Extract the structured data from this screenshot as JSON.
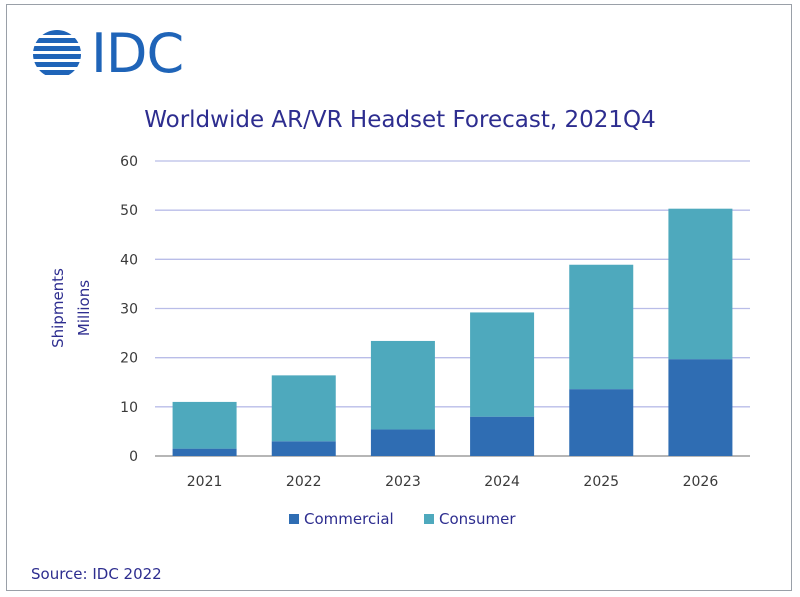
{
  "logo": {
    "text": "IDC"
  },
  "source": "Source: IDC 2022",
  "chart_data": {
    "type": "bar",
    "stacked": true,
    "title": "Worldwide AR/VR Headset Forecast, 2021Q4",
    "ylabel_lines": [
      "Shipments",
      "Millions"
    ],
    "categories": [
      "2021",
      "2022",
      "2023",
      "2024",
      "2025",
      "2026"
    ],
    "series": [
      {
        "name": "Commercial",
        "color": "#2f6db3",
        "values": [
          1.5,
          3,
          5.4,
          8,
          13.6,
          19.7
        ]
      },
      {
        "name": "Consumer",
        "color": "#4ea9bd",
        "values": [
          9.5,
          13.4,
          18,
          21.2,
          25.3,
          30.6
        ]
      }
    ],
    "ylim": [
      0,
      60
    ],
    "yticks": [
      0,
      10,
      20,
      30,
      40,
      50,
      60
    ],
    "grid": true,
    "legend_position": "bottom"
  }
}
